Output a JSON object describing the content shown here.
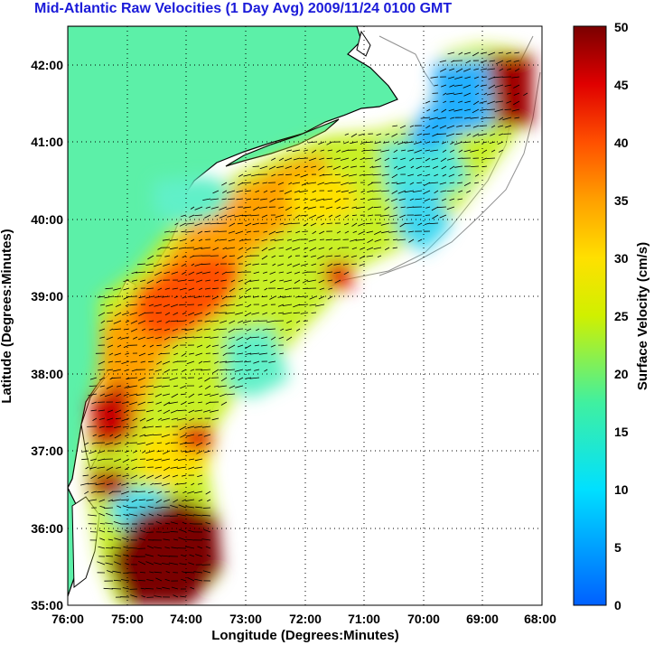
{
  "title": "Mid-Atlantic Raw Velocities (1 Day Avg) 2009/11/24 0100 GMT",
  "chart_data": {
    "type": "heatmap",
    "title": "Mid-Atlantic Raw Velocities (1 Day Avg) 2009/11/24 0100 GMT",
    "xlabel": "Longitude (Degrees:Minutes)",
    "ylabel": "Latitude (Degrees:Minutes)",
    "colorbar_label": "Surface Velocity (cm/s)",
    "x_ticks": [
      "76:00",
      "75:00",
      "74:00",
      "73:00",
      "72:00",
      "71:00",
      "70:00",
      "69:00",
      "68:00"
    ],
    "y_ticks": [
      "42:00",
      "41:00",
      "40:00",
      "39:00",
      "38:00",
      "37:00",
      "36:00",
      "35:00"
    ],
    "colorbar_ticks": [
      "50",
      "45",
      "40",
      "35",
      "30",
      "25",
      "20",
      "15",
      "10",
      "5",
      "0"
    ],
    "xlim": [
      -76.0,
      -68.0
    ],
    "ylim": [
      35.0,
      42.5
    ],
    "clim": [
      0,
      50
    ],
    "grid": true,
    "colormap": "jet",
    "colors": {
      "land": "#5cf0a8",
      "title": "#1b1bd9",
      "coast": "#000000",
      "bathymetry": "#909090"
    }
  }
}
